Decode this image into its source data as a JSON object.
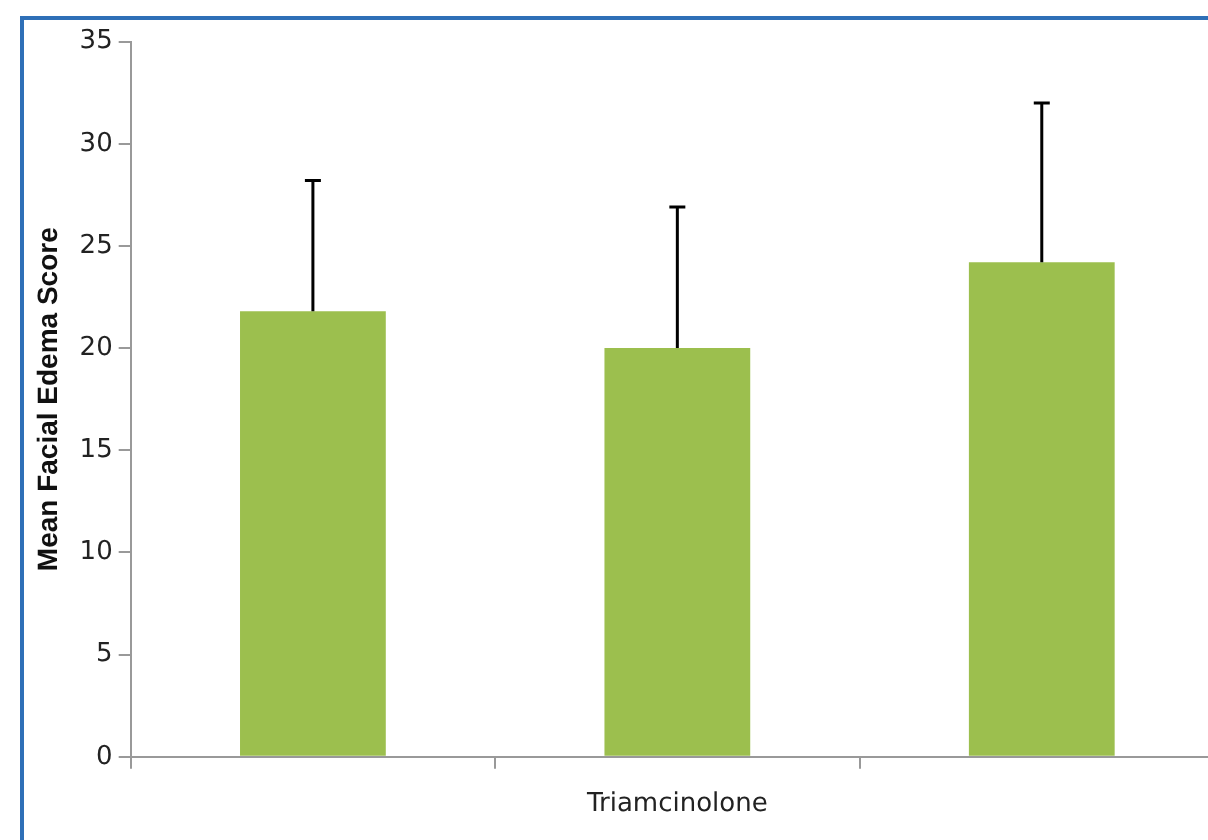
{
  "chart_data": {
    "type": "bar",
    "ylabel": "Mean Facial Edema Score",
    "categories": [
      null,
      "Triamcinolone",
      null
    ],
    "values": [
      21.8,
      20.0,
      24.2
    ],
    "errors": [
      [
        21.8,
        28.2
      ],
      [
        20.0,
        26.9
      ],
      [
        24.2,
        32.0
      ]
    ],
    "color": "#9cbf4e",
    "ylim": [
      0,
      35
    ],
    "yticks": [
      0,
      5,
      10,
      15,
      20,
      25,
      30,
      35
    ],
    "grid": false,
    "legend": false
  }
}
